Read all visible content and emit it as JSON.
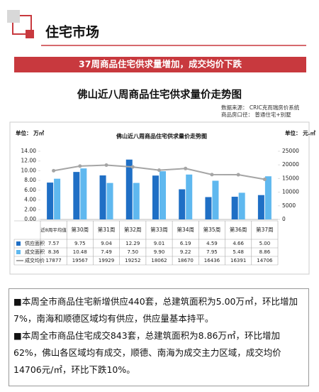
{
  "header": {
    "title": "住宅市场"
  },
  "banner": "37周商品住宅供求量增加，成交均价下跌",
  "chart_data": {
    "type": "bar",
    "title": "佛山近八周商品住宅供求量价走势图",
    "source": "数据来源： CRIC克而瑞房价系统",
    "scope": "商品房口径： 普通住宅+别墅",
    "inner_title": "佛山近八周商品住宅供求量价走势图",
    "y_unit": "单位： 万㎡",
    "y2_unit": "单位： 元.㎡",
    "categories": [
      "近8周平均值",
      "第30周",
      "第31周",
      "第32周",
      "第33周",
      "第34周",
      "第35周",
      "第36周",
      "第37周"
    ],
    "series": [
      {
        "name": "供应面积",
        "color": "#1f6fc5",
        "type": "bar",
        "values": [
          7.57,
          9.75,
          9.04,
          12.29,
          9.01,
          6.19,
          4.59,
          4.66,
          5.0
        ],
        "value_labels": [
          "7.57",
          "9.75",
          "9.04",
          "12.29",
          "9.01",
          "6.19",
          "4.59",
          "4.66",
          "5.00"
        ]
      },
      {
        "name": "成交面积",
        "color": "#5fb8ef",
        "type": "bar",
        "values": [
          8.36,
          10.48,
          7.49,
          7.5,
          9.9,
          9.22,
          7.95,
          5.48,
          8.86
        ],
        "value_labels": [
          "8.36",
          "10.48",
          "7.49",
          "7.50",
          "9.90",
          "9.22",
          "7.95",
          "5.48",
          "8.86"
        ]
      },
      {
        "name": "成交均价",
        "color": "#a5a5a5",
        "type": "line",
        "axis": "y2",
        "values": [
          17877,
          19567,
          19929,
          19252,
          18062,
          18670,
          16436,
          16391,
          14706
        ]
      }
    ],
    "ylim": [
      0,
      14
    ],
    "yticks": [
      {
        "value": 0,
        "label": "0.00"
      },
      {
        "value": 2,
        "label": "2.00"
      },
      {
        "value": 4,
        "label": "4.00"
      },
      {
        "value": 6,
        "label": "6.00"
      },
      {
        "value": 8,
        "label": "8.00"
      },
      {
        "value": 10,
        "label": "10.00"
      },
      {
        "value": 12,
        "label": "12.00"
      },
      {
        "value": 14,
        "label": "14.00"
      }
    ],
    "y2lim": [
      0,
      25000
    ],
    "y2ticks": [
      0,
      5000,
      10000,
      15000,
      20000,
      25000
    ]
  },
  "bullets": [
    "本周全市商品住宅新增供应440套，总建筑面积为5.00万㎡，环比增加7%，南海和顺德区域均有供应，供应量基本持平。",
    "本周全市商品住宅成交843套，总建筑面积为8.86万㎡，环比增加62%，佛山各区域均有成交，顺德、南海为成交主力区域，成交均价14706元/㎡，环比下跌10%。"
  ]
}
